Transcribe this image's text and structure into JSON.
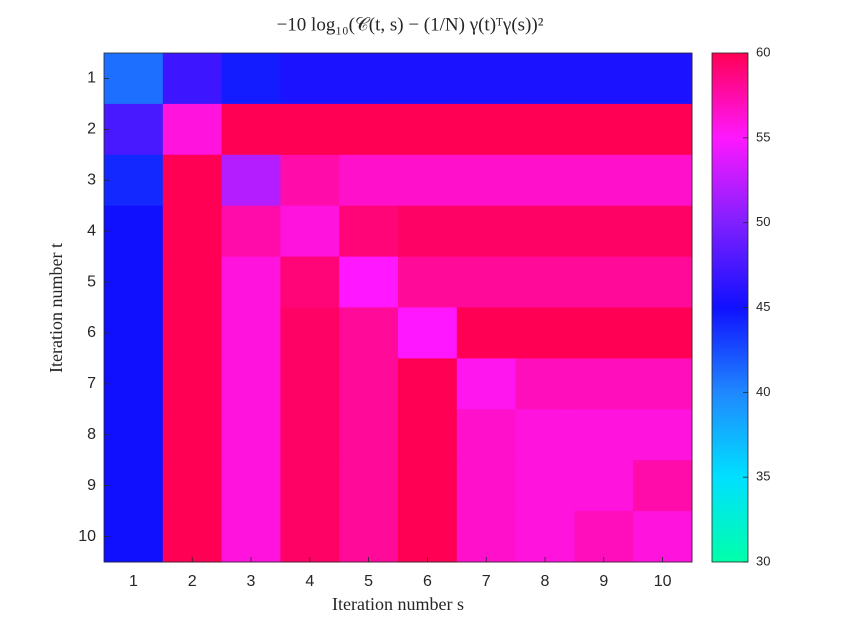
{
  "chart_data": {
    "type": "heatmap",
    "title": "−10 log₁₀(𝒞(t, s) − (1/N) γ(t)ᵀγ(s))²",
    "xlabel": "Iteration number s",
    "ylabel": "Iteration number t",
    "x": [
      1,
      2,
      3,
      4,
      5,
      6,
      7,
      8,
      9,
      10
    ],
    "y": [
      1,
      2,
      3,
      4,
      5,
      6,
      7,
      8,
      9,
      10
    ],
    "values": [
      [
        41,
        47,
        44.5,
        45.5,
        45.5,
        45.5,
        45.5,
        45.5,
        45.5,
        45.5
      ],
      [
        47.5,
        56,
        60,
        60,
        60,
        60,
        60,
        60,
        60,
        60
      ],
      [
        44,
        60,
        52,
        57.5,
        56.5,
        56.5,
        56.5,
        56.5,
        56.5,
        56.5
      ],
      [
        45,
        60,
        57.5,
        56,
        59,
        59.5,
        59.5,
        59.5,
        59.5,
        59.5
      ],
      [
        45,
        60,
        56,
        59,
        55,
        58,
        58,
        58,
        58,
        58
      ],
      [
        45,
        60,
        56,
        59.5,
        58,
        55,
        60,
        60,
        60,
        60
      ],
      [
        45,
        60,
        56,
        59.5,
        58,
        60,
        55.5,
        57,
        57,
        57
      ],
      [
        45,
        60,
        56,
        59.5,
        58,
        60,
        56.5,
        56,
        56,
        56
      ],
      [
        45,
        60,
        56,
        59.5,
        58,
        60,
        56.5,
        56,
        56,
        57.5
      ],
      [
        45,
        60,
        56,
        59.5,
        58,
        60,
        56.5,
        56,
        57,
        56
      ]
    ],
    "clim": [
      30,
      60
    ],
    "cticks": [
      30,
      35,
      40,
      45,
      50,
      55,
      60
    ],
    "colorscale": [
      {
        "value": 30,
        "color": "#00ffaa"
      },
      {
        "value": 35,
        "color": "#00e0ff"
      },
      {
        "value": 40,
        "color": "#2088ff"
      },
      {
        "value": 45,
        "color": "#1010ff"
      },
      {
        "value": 50,
        "color": "#8020ff"
      },
      {
        "value": 55,
        "color": "#ff18ff"
      },
      {
        "value": 60,
        "color": "#ff0055"
      }
    ]
  }
}
